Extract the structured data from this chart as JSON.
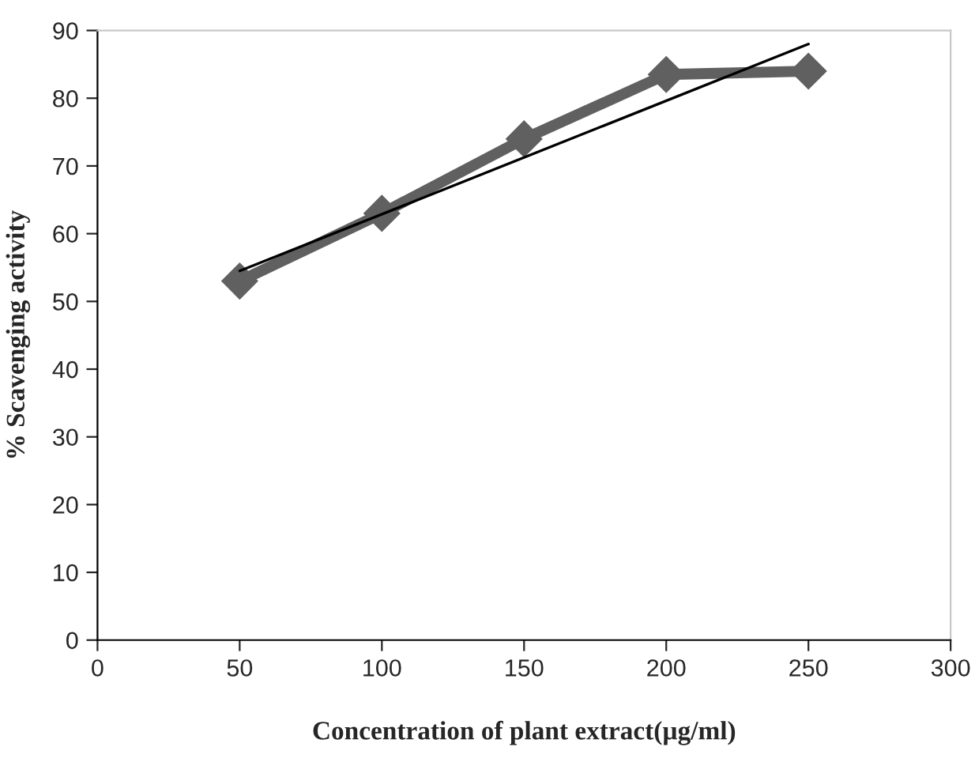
{
  "chart_data": {
    "type": "line",
    "xlabel": "Concentration of plant extract(µg/ml)",
    "ylabel": "% Scavenging activity",
    "x": [
      50,
      100,
      150,
      200,
      250
    ],
    "series": [
      {
        "color": "#606060",
        "values": [
          53,
          63,
          74,
          83.5,
          84
        ],
        "marker": "diamond",
        "line_style": "solid"
      },
      {
        "type": "line",
        "color": "#000000",
        "x": [
          50,
          250
        ],
        "values": [
          54.5,
          88
        ],
        "marker": "none",
        "line_style": "solid"
      }
    ],
    "xlim": [
      0,
      300
    ],
    "xticks": [
      0,
      50,
      100,
      150,
      200,
      250,
      300
    ],
    "ylim": [
      0,
      90
    ],
    "yticks": [
      0,
      10,
      20,
      30,
      40,
      50,
      60,
      70,
      80,
      90
    ],
    "grid": false
  }
}
